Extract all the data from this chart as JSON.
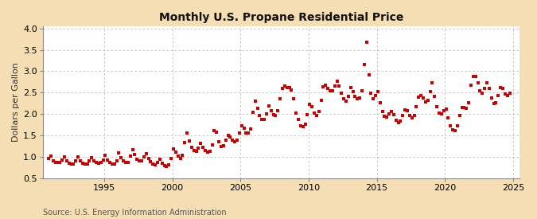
{
  "title": "Monthly U.S. Propane Residential Price",
  "ylabel": "Dollars per Gallon",
  "source": "Source: U.S. Energy Information Administration",
  "xlim": [
    1990.5,
    2025.5
  ],
  "ylim": [
    0.5,
    4.05
  ],
  "yticks": [
    0.5,
    1.0,
    1.5,
    2.0,
    2.5,
    3.0,
    3.5,
    4.0
  ],
  "xticks": [
    1995,
    2000,
    2005,
    2010,
    2015,
    2020,
    2025
  ],
  "fig_bg_color": "#f5deb3",
  "plot_bg_color": "#ffffff",
  "marker_color": "#cc0000",
  "grid_color": "#bbbbbb",
  "spine_color": "#888888",
  "data": [
    [
      1990.917,
      0.967
    ],
    [
      1991.083,
      1.01
    ],
    [
      1991.25,
      0.91
    ],
    [
      1991.417,
      0.87
    ],
    [
      1991.583,
      0.87
    ],
    [
      1991.75,
      0.87
    ],
    [
      1991.917,
      0.93
    ],
    [
      1992.083,
      1.0
    ],
    [
      1992.25,
      0.9
    ],
    [
      1992.417,
      0.85
    ],
    [
      1992.583,
      0.84
    ],
    [
      1992.75,
      0.84
    ],
    [
      1992.917,
      0.9
    ],
    [
      1993.083,
      1.0
    ],
    [
      1993.25,
      0.9
    ],
    [
      1993.417,
      0.85
    ],
    [
      1993.583,
      0.84
    ],
    [
      1993.75,
      0.84
    ],
    [
      1993.917,
      0.9
    ],
    [
      1994.083,
      0.98
    ],
    [
      1994.25,
      0.9
    ],
    [
      1994.417,
      0.86
    ],
    [
      1994.583,
      0.85
    ],
    [
      1994.75,
      0.86
    ],
    [
      1994.917,
      0.93
    ],
    [
      1995.083,
      1.03
    ],
    [
      1995.25,
      0.92
    ],
    [
      1995.417,
      0.86
    ],
    [
      1995.583,
      0.84
    ],
    [
      1995.75,
      0.84
    ],
    [
      1995.917,
      0.91
    ],
    [
      1996.083,
      1.09
    ],
    [
      1996.25,
      0.98
    ],
    [
      1996.417,
      0.9
    ],
    [
      1996.583,
      0.87
    ],
    [
      1996.75,
      0.87
    ],
    [
      1996.917,
      1.01
    ],
    [
      1997.083,
      1.16
    ],
    [
      1997.25,
      1.06
    ],
    [
      1997.417,
      0.95
    ],
    [
      1997.583,
      0.91
    ],
    [
      1997.75,
      0.9
    ],
    [
      1997.917,
      0.99
    ],
    [
      1998.083,
      1.07
    ],
    [
      1998.25,
      0.96
    ],
    [
      1998.417,
      0.88
    ],
    [
      1998.583,
      0.84
    ],
    [
      1998.75,
      0.82
    ],
    [
      1998.917,
      0.86
    ],
    [
      1999.083,
      0.95
    ],
    [
      1999.25,
      0.85
    ],
    [
      1999.417,
      0.79
    ],
    [
      1999.583,
      0.78
    ],
    [
      1999.75,
      0.82
    ],
    [
      1999.917,
      0.96
    ],
    [
      2000.083,
      1.18
    ],
    [
      2000.25,
      1.11
    ],
    [
      2000.417,
      1.02
    ],
    [
      2000.583,
      0.97
    ],
    [
      2000.75,
      1.04
    ],
    [
      2000.917,
      1.33
    ],
    [
      2001.083,
      1.55
    ],
    [
      2001.25,
      1.37
    ],
    [
      2001.417,
      1.22
    ],
    [
      2001.583,
      1.15
    ],
    [
      2001.75,
      1.13
    ],
    [
      2001.917,
      1.2
    ],
    [
      2002.083,
      1.31
    ],
    [
      2002.25,
      1.23
    ],
    [
      2002.417,
      1.14
    ],
    [
      2002.583,
      1.11
    ],
    [
      2002.75,
      1.13
    ],
    [
      2002.917,
      1.28
    ],
    [
      2003.083,
      1.61
    ],
    [
      2003.25,
      1.57
    ],
    [
      2003.417,
      1.36
    ],
    [
      2003.583,
      1.24
    ],
    [
      2003.75,
      1.25
    ],
    [
      2003.917,
      1.38
    ],
    [
      2004.083,
      1.51
    ],
    [
      2004.25,
      1.46
    ],
    [
      2004.417,
      1.38
    ],
    [
      2004.583,
      1.36
    ],
    [
      2004.75,
      1.39
    ],
    [
      2004.917,
      1.56
    ],
    [
      2005.083,
      1.73
    ],
    [
      2005.25,
      1.66
    ],
    [
      2005.417,
      1.55
    ],
    [
      2005.583,
      1.55
    ],
    [
      2005.75,
      1.65
    ],
    [
      2005.917,
      2.04
    ],
    [
      2006.083,
      2.3
    ],
    [
      2006.25,
      2.14
    ],
    [
      2006.417,
      1.96
    ],
    [
      2006.583,
      1.88
    ],
    [
      2006.75,
      1.87
    ],
    [
      2006.917,
      2.0
    ],
    [
      2007.083,
      2.18
    ],
    [
      2007.25,
      2.07
    ],
    [
      2007.417,
      1.98
    ],
    [
      2007.583,
      1.97
    ],
    [
      2007.75,
      2.08
    ],
    [
      2007.917,
      2.35
    ],
    [
      2008.083,
      2.6
    ],
    [
      2008.25,
      2.65
    ],
    [
      2008.417,
      2.61
    ],
    [
      2008.583,
      2.62
    ],
    [
      2008.75,
      2.56
    ],
    [
      2008.917,
      2.35
    ],
    [
      2009.083,
      2.03
    ],
    [
      2009.25,
      1.87
    ],
    [
      2009.417,
      1.73
    ],
    [
      2009.583,
      1.7
    ],
    [
      2009.75,
      1.77
    ],
    [
      2009.917,
      1.98
    ],
    [
      2010.083,
      2.22
    ],
    [
      2010.25,
      2.17
    ],
    [
      2010.417,
      2.03
    ],
    [
      2010.583,
      1.97
    ],
    [
      2010.75,
      2.06
    ],
    [
      2010.917,
      2.32
    ],
    [
      2011.083,
      2.64
    ],
    [
      2011.25,
      2.68
    ],
    [
      2011.417,
      2.6
    ],
    [
      2011.583,
      2.54
    ],
    [
      2011.75,
      2.55
    ],
    [
      2011.917,
      2.65
    ],
    [
      2012.083,
      2.77
    ],
    [
      2012.25,
      2.65
    ],
    [
      2012.417,
      2.48
    ],
    [
      2012.583,
      2.36
    ],
    [
      2012.75,
      2.3
    ],
    [
      2012.917,
      2.42
    ],
    [
      2013.083,
      2.61
    ],
    [
      2013.25,
      2.53
    ],
    [
      2013.417,
      2.41
    ],
    [
      2013.583,
      2.35
    ],
    [
      2013.75,
      2.37
    ],
    [
      2013.917,
      2.55
    ],
    [
      2014.083,
      3.15
    ],
    [
      2014.25,
      3.68
    ],
    [
      2014.417,
      2.92
    ],
    [
      2014.583,
      2.49
    ],
    [
      2014.75,
      2.36
    ],
    [
      2014.917,
      2.44
    ],
    [
      2015.083,
      2.52
    ],
    [
      2015.25,
      2.27
    ],
    [
      2015.417,
      2.05
    ],
    [
      2015.583,
      1.94
    ],
    [
      2015.75,
      1.93
    ],
    [
      2015.917,
      2.01
    ],
    [
      2016.083,
      2.06
    ],
    [
      2016.25,
      1.98
    ],
    [
      2016.417,
      1.86
    ],
    [
      2016.583,
      1.8
    ],
    [
      2016.75,
      1.83
    ],
    [
      2016.917,
      1.96
    ],
    [
      2017.083,
      2.1
    ],
    [
      2017.25,
      2.07
    ],
    [
      2017.417,
      1.97
    ],
    [
      2017.583,
      1.91
    ],
    [
      2017.75,
      1.96
    ],
    [
      2017.917,
      2.17
    ],
    [
      2018.083,
      2.4
    ],
    [
      2018.25,
      2.44
    ],
    [
      2018.417,
      2.37
    ],
    [
      2018.583,
      2.29
    ],
    [
      2018.75,
      2.32
    ],
    [
      2018.917,
      2.53
    ],
    [
      2019.083,
      2.72
    ],
    [
      2019.25,
      2.42
    ],
    [
      2019.417,
      2.17
    ],
    [
      2019.583,
      2.02
    ],
    [
      2019.75,
      2.0
    ],
    [
      2019.917,
      2.07
    ],
    [
      2020.083,
      2.12
    ],
    [
      2020.25,
      1.91
    ],
    [
      2020.417,
      1.73
    ],
    [
      2020.583,
      1.63
    ],
    [
      2020.75,
      1.62
    ],
    [
      2020.917,
      1.73
    ],
    [
      2021.083,
      1.97
    ],
    [
      2021.25,
      2.16
    ],
    [
      2021.417,
      2.15
    ],
    [
      2021.583,
      2.14
    ],
    [
      2021.75,
      2.26
    ],
    [
      2021.917,
      2.67
    ],
    [
      2022.083,
      2.88
    ],
    [
      2022.25,
      2.88
    ],
    [
      2022.417,
      2.72
    ],
    [
      2022.583,
      2.54
    ],
    [
      2022.75,
      2.49
    ],
    [
      2022.917,
      2.6
    ],
    [
      2023.083,
      2.73
    ],
    [
      2023.25,
      2.59
    ],
    [
      2023.417,
      2.37
    ],
    [
      2023.583,
      2.24
    ],
    [
      2023.75,
      2.26
    ],
    [
      2023.917,
      2.44
    ],
    [
      2024.083,
      2.62
    ],
    [
      2024.25,
      2.6
    ],
    [
      2024.417,
      2.47
    ],
    [
      2024.583,
      2.44
    ],
    [
      2024.75,
      2.49
    ]
  ]
}
